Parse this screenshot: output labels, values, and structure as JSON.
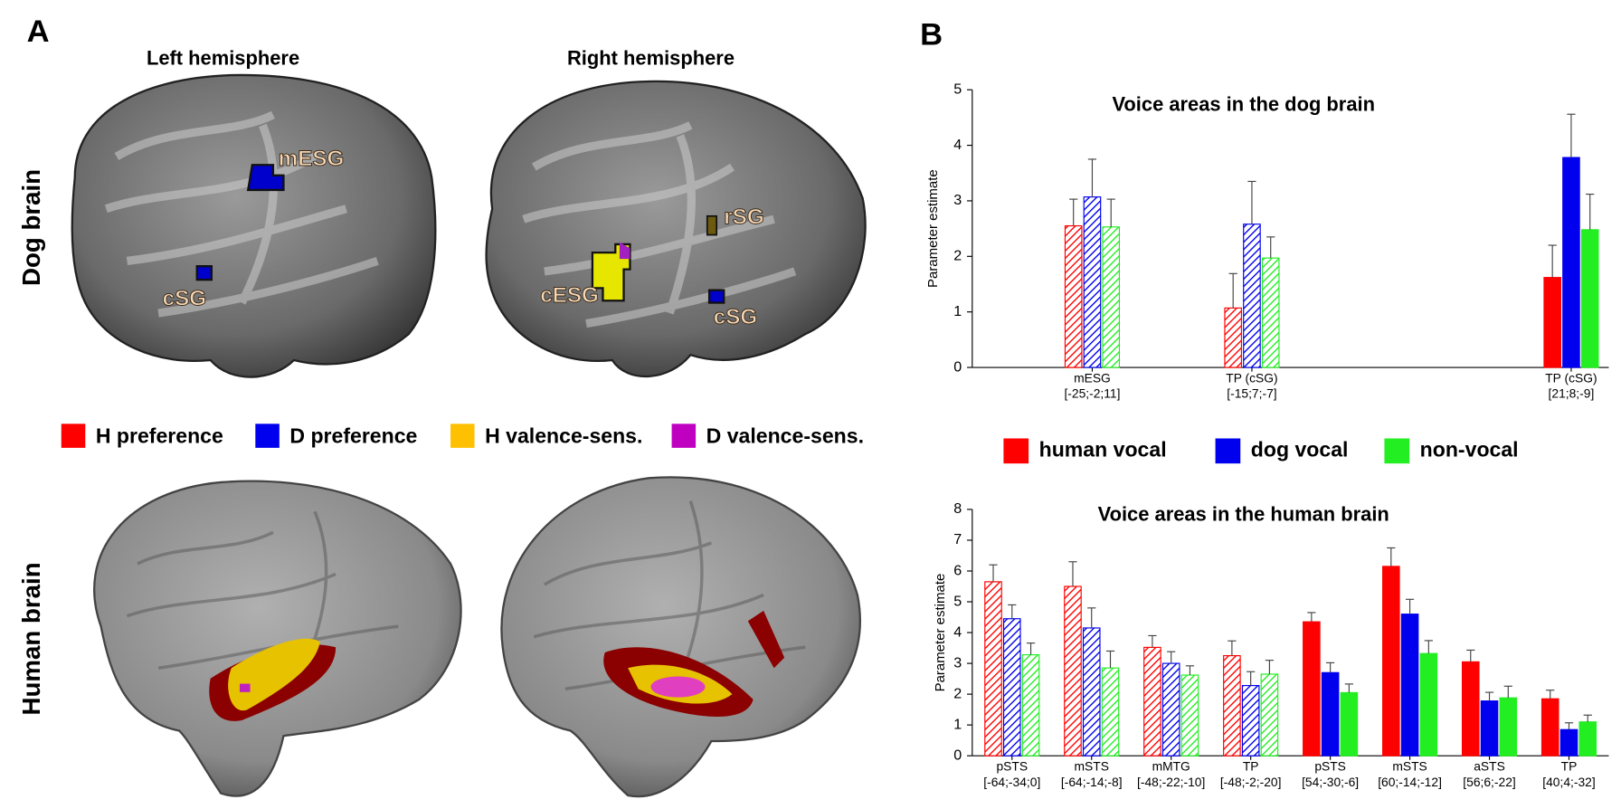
{
  "panel_a": {
    "label": "A",
    "columns": [
      "Left hemisphere",
      "Right hemisphere"
    ],
    "rows": [
      "Dog brain",
      "Human brain"
    ],
    "regions": [
      "mESG",
      "cSG",
      "rSG",
      "cESG",
      "cSG"
    ],
    "legend": [
      {
        "name": "H preference",
        "color": "#ff0000"
      },
      {
        "name": "D preference",
        "color": "#0000ee"
      },
      {
        "name": "H valence-sens.",
        "color": "#ffc000"
      },
      {
        "name": "D valence-sens.",
        "color": "#c000c0"
      }
    ]
  },
  "panel_b_label": "B",
  "chart_data": [
    {
      "type": "bar",
      "title": "Voice areas in the dog brain",
      "y_label": "Parameter estimate",
      "categories": [
        [
          "mESG",
          "[-25;-2;11]"
        ],
        [
          "TP (cSG)",
          "[-15;7;-7]"
        ],
        null,
        [
          "TP (cSG)",
          "[21;8;-9]"
        ]
      ],
      "hatched": [
        true,
        true,
        null,
        false
      ],
      "series": [
        {
          "name": "human vocal",
          "color": "#ff0000",
          "values": [
            2.55,
            1.07,
            null,
            1.62
          ],
          "errors": [
            0.48,
            0.62,
            null,
            0.58
          ]
        },
        {
          "name": "dog vocal",
          "color": "#0000ee",
          "values": [
            3.07,
            2.58,
            null,
            3.78
          ],
          "errors": [
            0.68,
            0.77,
            null,
            0.78
          ]
        },
        {
          "name": "non-vocal",
          "color": "#22ee22",
          "values": [
            2.53,
            1.97,
            null,
            2.48
          ],
          "errors": [
            0.5,
            0.38,
            null,
            0.64
          ]
        }
      ],
      "ylim": [
        0,
        5
      ],
      "yticks": [
        0,
        1,
        2,
        3,
        4,
        5
      ]
    },
    {
      "type": "bar",
      "title": "Voice areas in the human brain",
      "y_label": "Parameter estimate",
      "categories": [
        [
          "pSTS",
          "[-64;-34;0]"
        ],
        [
          "mSTS",
          "[-64;-14;-8]"
        ],
        [
          "mMTG",
          "[-48;-22;-10]"
        ],
        [
          "TP",
          "[-48;-2;-20]"
        ],
        [
          "pSTS",
          "[54;-30;-6]"
        ],
        [
          "mSTS",
          "[60;-14;-12]"
        ],
        [
          "aSTS",
          "[56;6;-22]"
        ],
        [
          "TP",
          "[40;4;-32]"
        ]
      ],
      "hatched": [
        true,
        true,
        true,
        true,
        false,
        false,
        false,
        false
      ],
      "series": [
        {
          "color": "#ff0000",
          "values": [
            5.65,
            5.5,
            3.52,
            3.25,
            4.35,
            6.15,
            3.05,
            1.85
          ],
          "errors": [
            0.55,
            0.8,
            0.38,
            0.48,
            0.3,
            0.6,
            0.38,
            0.28
          ]
        },
        {
          "color": "#0000ee",
          "values": [
            4.45,
            4.15,
            3.0,
            2.28,
            2.7,
            4.6,
            1.78,
            0.85
          ],
          "errors": [
            0.45,
            0.65,
            0.38,
            0.45,
            0.32,
            0.48,
            0.28,
            0.22
          ]
        },
        {
          "color": "#22ee22",
          "values": [
            3.28,
            2.85,
            2.62,
            2.65,
            2.05,
            3.32,
            1.88,
            1.1
          ],
          "errors": [
            0.38,
            0.55,
            0.3,
            0.45,
            0.28,
            0.42,
            0.38,
            0.22
          ]
        }
      ],
      "ylim": [
        0,
        8
      ],
      "yticks": [
        0,
        1,
        2,
        3,
        4,
        5,
        6,
        7,
        8
      ]
    }
  ]
}
